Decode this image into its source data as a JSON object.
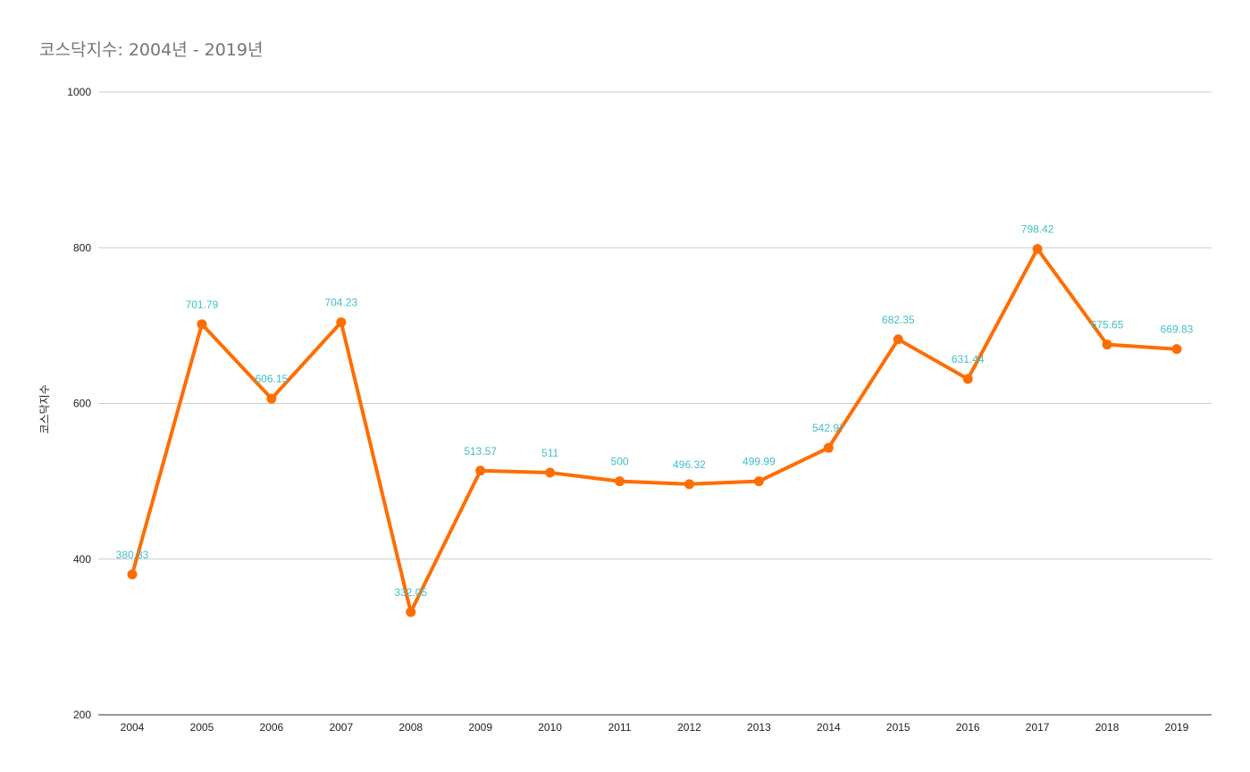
{
  "colors": {
    "line": "#ff6d01",
    "data_label": "#46bdc6",
    "grid": "#cccccc",
    "title": "#757575"
  },
  "chart_data": {
    "type": "line",
    "title": "코스닥지수: 2004년 - 2019년",
    "xlabel": "",
    "ylabel": "코스닥지수",
    "ylim": [
      200,
      1000
    ],
    "yticks": [
      200,
      400,
      600,
      800,
      1000
    ],
    "grid": true,
    "legend": "none",
    "categories": [
      "2004",
      "2005",
      "2006",
      "2007",
      "2008",
      "2009",
      "2010",
      "2011",
      "2012",
      "2013",
      "2014",
      "2015",
      "2016",
      "2017",
      "2018",
      "2019"
    ],
    "series": [
      {
        "name": "코스닥지수",
        "values": [
          380.33,
          701.79,
          606.15,
          704.23,
          332.05,
          513.57,
          511,
          500,
          496.32,
          499.99,
          542.97,
          682.35,
          631.44,
          798.42,
          675.65,
          669.83
        ],
        "labels": [
          "380.33",
          "701.79",
          "606.15",
          "704.23",
          "332.05",
          "513.57",
          "511",
          "500",
          "496.32",
          "499.99",
          "542.97",
          "682.35",
          "631.44",
          "798.42",
          "675.65",
          "669.83"
        ]
      }
    ]
  }
}
